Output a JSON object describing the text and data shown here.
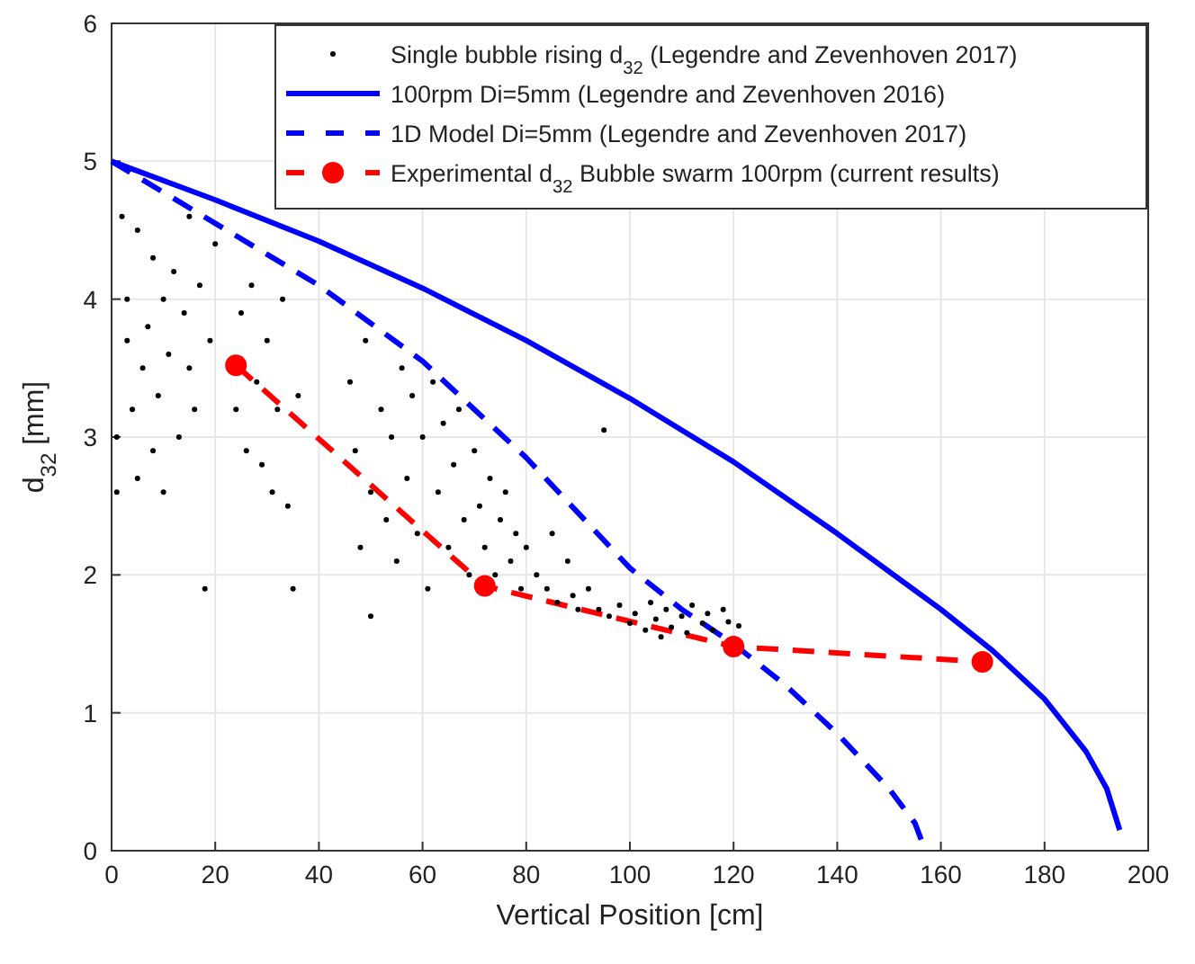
{
  "chart_data": {
    "type": "line",
    "xlabel": "Vertical Position [cm]",
    "ylabel": "d$_{32}$ [mm]",
    "xlim": [
      0,
      200
    ],
    "ylim": [
      0,
      6
    ],
    "xticks": [
      0,
      20,
      40,
      60,
      80,
      100,
      120,
      140,
      160,
      180,
      200
    ],
    "yticks": [
      0,
      1,
      2,
      3,
      4,
      5,
      6
    ],
    "grid": true,
    "legend": "top right",
    "series": [
      {
        "name": "Single bubble rising d$_{32}$  (Legendre and Zevenhoven 2017)",
        "type": "scatter",
        "marker": "circle",
        "color": "#000000",
        "x": [
          1,
          1,
          2,
          3,
          3,
          4,
          5,
          5,
          6,
          7,
          8,
          8,
          9,
          10,
          10,
          11,
          12,
          13,
          14,
          15,
          15,
          16,
          17,
          18,
          19,
          20,
          24,
          25,
          26,
          27,
          28,
          29,
          30,
          31,
          32,
          33,
          34,
          35,
          36,
          46,
          47,
          48,
          49,
          50,
          50,
          52,
          53,
          54,
          55,
          56,
          57,
          58,
          59,
          60,
          61,
          62,
          63,
          64,
          65,
          66,
          67,
          68,
          69,
          70,
          71,
          72,
          73,
          74,
          75,
          76,
          77,
          78,
          79,
          80,
          82,
          84,
          85,
          86,
          88,
          89,
          90,
          92,
          94,
          95,
          96,
          98,
          100,
          101,
          103,
          104,
          105,
          106,
          107,
          108,
          110,
          111,
          112,
          114,
          115,
          116,
          118,
          119,
          121
        ],
        "values": [
          2.6,
          3.0,
          4.6,
          3.7,
          4.0,
          3.2,
          4.5,
          2.7,
          3.5,
          3.8,
          2.9,
          4.3,
          3.3,
          4.0,
          2.6,
          3.6,
          4.2,
          3.0,
          3.9,
          3.5,
          4.6,
          3.2,
          4.1,
          1.9,
          3.7,
          4.4,
          3.2,
          3.9,
          2.9,
          4.1,
          3.4,
          2.8,
          3.7,
          2.6,
          3.2,
          4.0,
          2.5,
          1.9,
          3.3,
          3.4,
          2.9,
          2.2,
          3.7,
          1.7,
          2.6,
          3.2,
          2.4,
          3.0,
          2.1,
          3.5,
          2.7,
          3.3,
          2.3,
          3.0,
          1.9,
          3.4,
          2.6,
          3.1,
          2.2,
          2.8,
          3.2,
          2.4,
          2.0,
          2.9,
          2.5,
          2.2,
          2.7,
          2.0,
          2.4,
          2.6,
          2.1,
          2.3,
          1.9,
          2.2,
          2.0,
          1.9,
          2.3,
          1.8,
          2.1,
          1.85,
          1.75,
          1.9,
          1.75,
          3.05,
          1.7,
          1.78,
          1.65,
          1.72,
          1.6,
          1.8,
          1.68,
          1.55,
          1.75,
          1.62,
          1.7,
          1.58,
          1.78,
          1.65,
          1.72,
          1.6,
          1.75,
          1.66,
          1.63
        ]
      },
      {
        "name": "100rpm Di=5mm (Legendre and Zevenhoven 2016)",
        "marker": "none",
        "line_style": "solid",
        "color": "#0000ff",
        "x": [
          0,
          20,
          40,
          60,
          80,
          100,
          120,
          140,
          160,
          170,
          180,
          188,
          192,
          194.5
        ],
        "values": [
          5,
          4.72,
          4.42,
          4.08,
          3.7,
          3.28,
          2.82,
          2.3,
          1.75,
          1.45,
          1.1,
          0.72,
          0.45,
          0.15
        ]
      },
      {
        "name": "1D Model Di=5mm (Legendre and Zevenhoven 2017)",
        "marker": "none",
        "line_style": "dashed",
        "color": "#0000ff",
        "x": [
          0,
          20,
          40,
          60,
          80,
          100,
          110,
          120,
          130,
          140,
          150,
          155,
          157
        ],
        "values": [
          5,
          4.55,
          4.1,
          3.55,
          2.85,
          2.05,
          1.75,
          1.5,
          1.2,
          0.85,
          0.45,
          0.2,
          0
        ]
      },
      {
        "name": "Experimental d$_{32}$  Bubble swarm 100rpm (current results)",
        "marker": "circle",
        "line_style": "dashed",
        "color": "#ff0000",
        "x": [
          24,
          72,
          120,
          168
        ],
        "values": [
          3.52,
          1.92,
          1.48,
          1.37
        ]
      }
    ]
  }
}
